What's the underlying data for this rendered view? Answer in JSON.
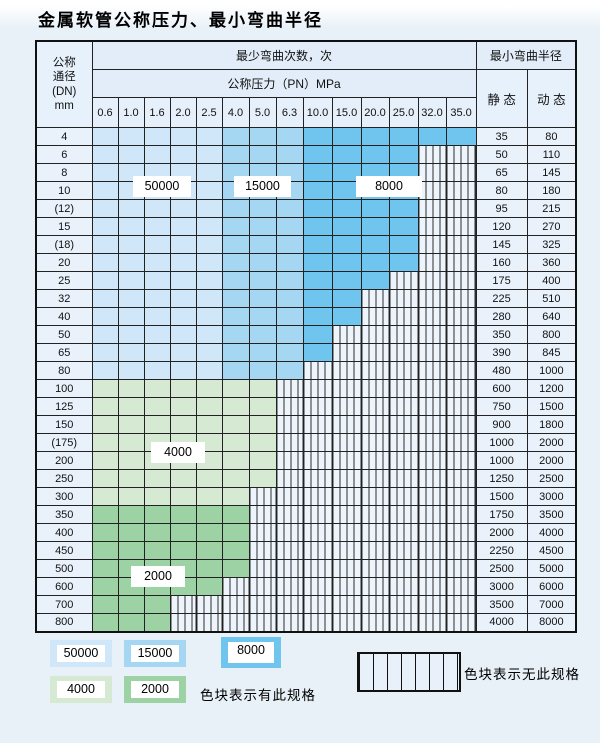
{
  "title": "金属软管公称压力、最小弯曲半径",
  "table": {
    "corner": [
      "公称",
      "通径",
      "(DN)",
      "mm"
    ],
    "bend_cycles_header": "最少弯曲次数，次",
    "pressure_header": "公称压力（PN）MPa",
    "radius_header": "最小弯曲半径",
    "static_label": "静 态",
    "dynamic_label": "动 态",
    "pressures": [
      "0.6",
      "1.0",
      "1.6",
      "2.0",
      "2.5",
      "4.0",
      "5.0",
      "6.3",
      "10.0",
      "15.0",
      "20.0",
      "25.0",
      "32.0",
      "35.0"
    ],
    "rows": [
      {
        "dn": "4",
        "zone": "blue",
        "last": 13,
        "static": "35",
        "dynamic": "80"
      },
      {
        "dn": "6",
        "zone": "blue",
        "last": 11,
        "static": "50",
        "dynamic": "110"
      },
      {
        "dn": "8",
        "zone": "blue",
        "last": 11,
        "static": "65",
        "dynamic": "145"
      },
      {
        "dn": "10",
        "zone": "blue",
        "last": 11,
        "static": "80",
        "dynamic": "180"
      },
      {
        "dn": "(12)",
        "zone": "blue",
        "last": 11,
        "static": "95",
        "dynamic": "215"
      },
      {
        "dn": "15",
        "zone": "blue",
        "last": 11,
        "static": "120",
        "dynamic": "270"
      },
      {
        "dn": "(18)",
        "zone": "blue",
        "last": 11,
        "static": "145",
        "dynamic": "325"
      },
      {
        "dn": "20",
        "zone": "blue",
        "last": 11,
        "static": "160",
        "dynamic": "360"
      },
      {
        "dn": "25",
        "zone": "blue",
        "last": 10,
        "static": "175",
        "dynamic": "400"
      },
      {
        "dn": "32",
        "zone": "blue",
        "last": 9,
        "static": "225",
        "dynamic": "510"
      },
      {
        "dn": "40",
        "zone": "blue",
        "last": 9,
        "static": "280",
        "dynamic": "640"
      },
      {
        "dn": "50",
        "zone": "blue",
        "last": 8,
        "static": "350",
        "dynamic": "800"
      },
      {
        "dn": "65",
        "zone": "blue",
        "last": 8,
        "static": "390",
        "dynamic": "845"
      },
      {
        "dn": "80",
        "zone": "blue",
        "last": 7,
        "static": "480",
        "dynamic": "1000"
      },
      {
        "dn": "100",
        "zone": "green4k",
        "last": 6,
        "static": "600",
        "dynamic": "1200"
      },
      {
        "dn": "125",
        "zone": "green4k",
        "last": 6,
        "static": "750",
        "dynamic": "1500"
      },
      {
        "dn": "150",
        "zone": "green4k",
        "last": 6,
        "static": "900",
        "dynamic": "1800"
      },
      {
        "dn": "(175)",
        "zone": "green4k",
        "last": 6,
        "static": "1000",
        "dynamic": "2000"
      },
      {
        "dn": "200",
        "zone": "green4k",
        "last": 6,
        "static": "1000",
        "dynamic": "2000"
      },
      {
        "dn": "250",
        "zone": "green4k",
        "last": 6,
        "static": "1250",
        "dynamic": "2500"
      },
      {
        "dn": "300",
        "zone": "green4k",
        "last": 5,
        "static": "1500",
        "dynamic": "3000"
      },
      {
        "dn": "350",
        "zone": "green2k",
        "last": 5,
        "static": "1750",
        "dynamic": "3500"
      },
      {
        "dn": "400",
        "zone": "green2k",
        "last": 5,
        "static": "2000",
        "dynamic": "4000"
      },
      {
        "dn": "450",
        "zone": "green2k",
        "last": 5,
        "static": "2250",
        "dynamic": "4500"
      },
      {
        "dn": "500",
        "zone": "green2k",
        "last": 5,
        "static": "2500",
        "dynamic": "5000"
      },
      {
        "dn": "600",
        "zone": "green2k",
        "last": 4,
        "static": "3000",
        "dynamic": "6000"
      },
      {
        "dn": "700",
        "zone": "green2k",
        "last": 2,
        "static": "3500",
        "dynamic": "7000"
      },
      {
        "dn": "800",
        "zone": "green2k",
        "last": 2,
        "static": "4000",
        "dynamic": "8000"
      }
    ]
  },
  "colors": {
    "cycles_50000": "#cfe7f8",
    "cycles_15000": "#a6d7f2",
    "cycles_8000": "#70c5ee",
    "cycles_4000": "#d5e9d3",
    "cycles_2000": "#9dd2a4"
  },
  "overlays": {
    "l50000": "50000",
    "l15000": "15000",
    "l8000": "8000",
    "l4000": "4000",
    "l2000": "2000"
  },
  "legend": {
    "items": [
      {
        "label": "50000",
        "color": "#cfe7f8"
      },
      {
        "label": "15000",
        "color": "#a6d7f2"
      },
      {
        "label": "8000",
        "color": "#70c5ee"
      },
      {
        "label": "4000",
        "color": "#d5e9d3"
      },
      {
        "label": "2000",
        "color": "#9dd2a4"
      }
    ],
    "has_spec_text": "色块表示有此规格",
    "no_spec_text": "色块表示无此规格"
  }
}
